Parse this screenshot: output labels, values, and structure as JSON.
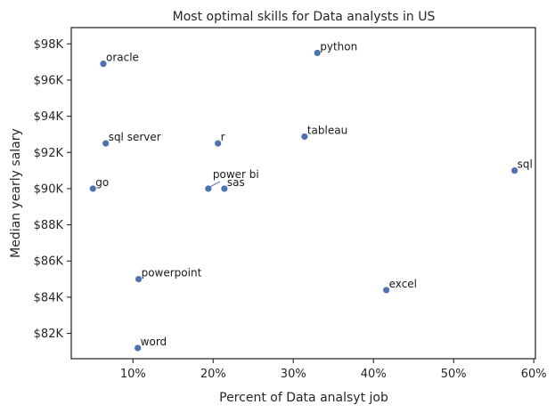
{
  "chart_data": {
    "type": "scatter",
    "title": "Most optimal skills for Data analysts in US",
    "xlabel": "Percent of Data analsyt job",
    "ylabel": "Median yearly salary",
    "xlim": [
      2.3,
      60.2
    ],
    "ylim": [
      80600,
      98900
    ],
    "xticks": [
      10,
      20,
      30,
      40,
      50,
      60
    ],
    "xtick_labels": [
      "10%",
      "20%",
      "30%",
      "40%",
      "50%",
      "60%"
    ],
    "yticks": [
      82000,
      84000,
      86000,
      88000,
      90000,
      92000,
      94000,
      96000,
      98000
    ],
    "ytick_labels": [
      "$82K",
      "$84K",
      "$86K",
      "$88K",
      "$90K",
      "$92K",
      "$94K",
      "$96K",
      "$98K"
    ],
    "grid": false,
    "color": "#4c72b0",
    "points": [
      {
        "label": "python",
        "x": 33.0,
        "y": 97500
      },
      {
        "label": "oracle",
        "x": 6.3,
        "y": 96900
      },
      {
        "label": "tableau",
        "x": 31.4,
        "y": 92875
      },
      {
        "label": "sql server",
        "x": 6.6,
        "y": 92500
      },
      {
        "label": "r",
        "x": 20.6,
        "y": 92500
      },
      {
        "label": "sql",
        "x": 57.6,
        "y": 91000
      },
      {
        "label": "power bi",
        "x": 19.4,
        "y": 90000
      },
      {
        "label": "sas",
        "x": 21.4,
        "y": 90000
      },
      {
        "label": "go",
        "x": 5.0,
        "y": 90000
      },
      {
        "label": "powerpoint",
        "x": 10.7,
        "y": 85000
      },
      {
        "label": "excel",
        "x": 41.6,
        "y": 84392
      },
      {
        "label": "word",
        "x": 10.6,
        "y": 81194
      }
    ]
  }
}
